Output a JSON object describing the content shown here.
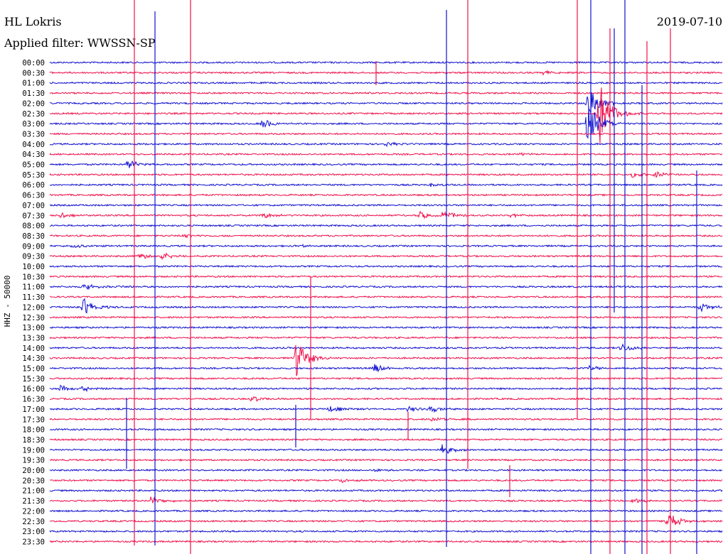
{
  "chart_data": {
    "type": "line",
    "title": "HL Lokris",
    "subtitle": "Applied filter: WWSSN-SP",
    "date": "2019-07-10",
    "ylabel": "HHZ - 50000",
    "tick_labels": [
      "00:00",
      "00:30",
      "01:00",
      "01:30",
      "02:00",
      "02:30",
      "03:00",
      "03:30",
      "04:00",
      "04:30",
      "05:00",
      "05:30",
      "06:00",
      "06:30",
      "07:00",
      "07:30",
      "08:00",
      "08:30",
      "09:00",
      "09:30",
      "10:00",
      "10:30",
      "11:00",
      "11:30",
      "12:00",
      "12:30",
      "13:00",
      "13:30",
      "14:00",
      "14:30",
      "15:00",
      "15:30",
      "16:00",
      "16:30",
      "17:00",
      "17:30",
      "18:00",
      "18:30",
      "19:00",
      "19:30",
      "20:00",
      "20:30",
      "21:00",
      "21:30",
      "22:00",
      "22:30",
      "23:00",
      "23:30"
    ],
    "trace_colors": [
      "#1010d0",
      "#f0104c"
    ],
    "x_minutes_per_trace": 30,
    "events": [
      {
        "trace": 1,
        "minute": 22.0,
        "amp": 0.4
      },
      {
        "trace": 6,
        "minute": 9.5,
        "amp": 0.9
      },
      {
        "trace": 8,
        "minute": 15.0,
        "amp": 0.4
      },
      {
        "trace": 9,
        "minute": 21.0,
        "amp": 0.3
      },
      {
        "trace": 10,
        "minute": 3.5,
        "amp": 0.9
      },
      {
        "trace": 11,
        "minute": 26.0,
        "amp": 0.5
      },
      {
        "trace": 11,
        "minute": 27.0,
        "amp": 0.6
      },
      {
        "trace": 12,
        "minute": 17.0,
        "amp": 0.3
      },
      {
        "trace": 15,
        "minute": 0.5,
        "amp": 0.5
      },
      {
        "trace": 15,
        "minute": 9.5,
        "amp": 0.5
      },
      {
        "trace": 15,
        "minute": 16.5,
        "amp": 0.7
      },
      {
        "trace": 15,
        "minute": 17.5,
        "amp": 0.8
      },
      {
        "trace": 15,
        "minute": 20.5,
        "amp": 0.4
      },
      {
        "trace": 17,
        "minute": 6.0,
        "amp": 0.3
      },
      {
        "trace": 18,
        "minute": 1.0,
        "amp": 0.4
      },
      {
        "trace": 18,
        "minute": 11.0,
        "amp": 0.3
      },
      {
        "trace": 19,
        "minute": 4.0,
        "amp": 0.5
      },
      {
        "trace": 19,
        "minute": 5.0,
        "amp": 0.6
      },
      {
        "trace": 22,
        "minute": 1.5,
        "amp": 0.6
      },
      {
        "trace": 22,
        "minute": 3.0,
        "amp": 0.4
      },
      {
        "trace": 24,
        "minute": 1.5,
        "amp": 1.6
      },
      {
        "trace": 24,
        "minute": 29.0,
        "amp": 0.8
      },
      {
        "trace": 29,
        "minute": 11.0,
        "amp": 3.2
      },
      {
        "trace": 28,
        "minute": 25.5,
        "amp": 0.8
      },
      {
        "trace": 30,
        "minute": 14.5,
        "amp": 0.8
      },
      {
        "trace": 30,
        "minute": 24.0,
        "amp": 0.5
      },
      {
        "trace": 32,
        "minute": 0.5,
        "amp": 0.6
      },
      {
        "trace": 32,
        "minute": 1.5,
        "amp": 0.5
      },
      {
        "trace": 33,
        "minute": 9.0,
        "amp": 0.6
      },
      {
        "trace": 34,
        "minute": 12.5,
        "amp": 0.6
      },
      {
        "trace": 34,
        "minute": 16.0,
        "amp": 0.5
      },
      {
        "trace": 34,
        "minute": 17.0,
        "amp": 0.5
      },
      {
        "trace": 35,
        "minute": 17.0,
        "amp": 0.5
      },
      {
        "trace": 38,
        "minute": 17.5,
        "amp": 0.9
      },
      {
        "trace": 40,
        "minute": 14.5,
        "amp": 0.3
      },
      {
        "trace": 41,
        "minute": 13.0,
        "amp": 0.4
      },
      {
        "trace": 43,
        "minute": 4.5,
        "amp": 0.9
      },
      {
        "trace": 43,
        "minute": 26.0,
        "amp": 0.5
      },
      {
        "trace": 45,
        "minute": 27.5,
        "amp": 1.8
      },
      {
        "trace": 6,
        "minute": 24.0,
        "amp": 4.0
      },
      {
        "trace": 5,
        "minute": 24.5,
        "amp": 6.0
      },
      {
        "trace": 4,
        "minute": 24.0,
        "amp": 3.0
      }
    ]
  }
}
